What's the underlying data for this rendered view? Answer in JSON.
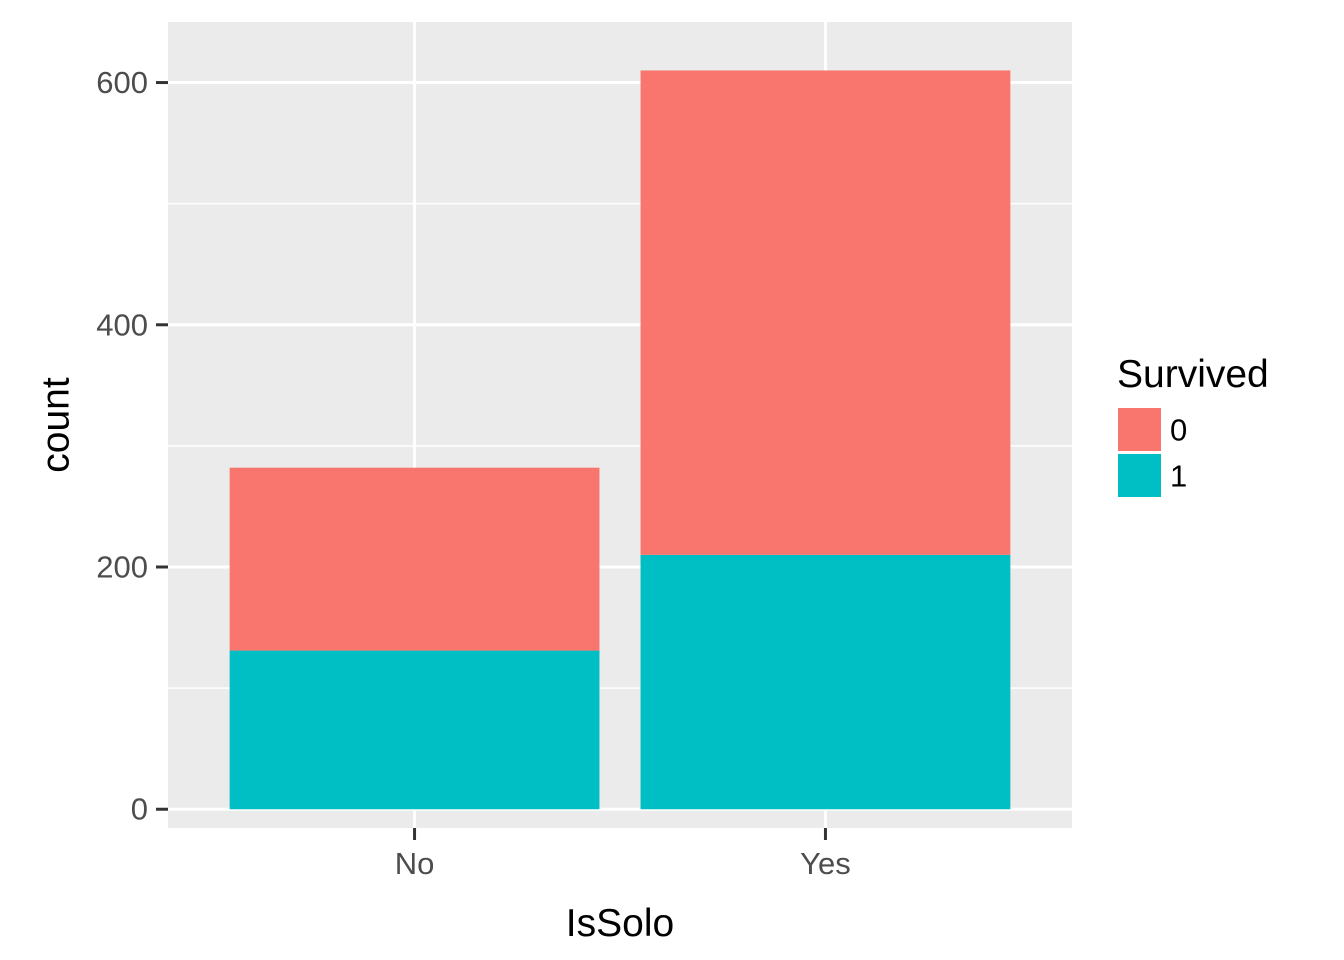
{
  "chart_data": {
    "type": "bar",
    "stacked": true,
    "categories": [
      "No",
      "Yes"
    ],
    "series": [
      {
        "name": "0",
        "values": [
          151,
          400
        ],
        "color": "#F8766D"
      },
      {
        "name": "1",
        "values": [
          131,
          210
        ],
        "color": "#00BFC4"
      }
    ],
    "xlabel": "IsSolo",
    "ylabel": "count",
    "ylim": [
      -15.5,
      650
    ],
    "yticks": [
      0,
      200,
      400,
      600
    ],
    "yticks_minor": [
      100,
      300,
      500
    ],
    "ytick_labels": [
      "0",
      "200",
      "400",
      "600"
    ],
    "legend": {
      "title": "Survived",
      "placement": "right",
      "entries": [
        "0",
        "1"
      ]
    },
    "grid": true,
    "panel_background": "#EBEBEB"
  }
}
